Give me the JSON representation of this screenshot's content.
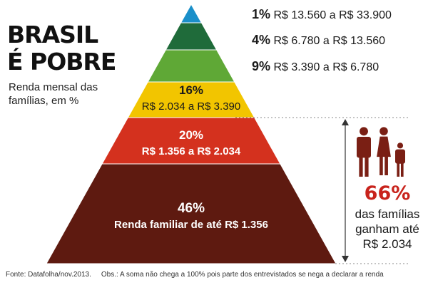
{
  "title_lines": [
    "BRASIL",
    "É POBRE"
  ],
  "subtitle": "Renda mensal das famílias, em %",
  "chart_data": {
    "type": "pyramid",
    "title": "BRASIL É POBRE",
    "subtitle": "Renda mensal das famílias, em %",
    "tiers": [
      {
        "percent": 1,
        "percent_label": "1%",
        "range_label": "R$ 13.560 a R$ 33.900",
        "color": "#1a8fc9"
      },
      {
        "percent": 4,
        "percent_label": "4%",
        "range_label": "R$ 6.780 a R$ 13.560",
        "color": "#1f6b3a"
      },
      {
        "percent": 9,
        "percent_label": "9%",
        "range_label": "R$ 3.390 a R$ 6.780",
        "color": "#5fa836"
      },
      {
        "percent": 16,
        "percent_label": "16%",
        "range_label": "R$ 2.034 a R$ 3.390",
        "color": "#f2c500"
      },
      {
        "percent": 20,
        "percent_label": "20%",
        "range_label": "R$ 1.356 a R$ 2.034",
        "color": "#d4311e"
      },
      {
        "percent": 46,
        "percent_label": "46%",
        "range_label": "Renda familiar de até R$ 1.356",
        "color": "#5e1a10"
      }
    ]
  },
  "highlight": {
    "value": "66%",
    "text": "das famílias ganham até R$ 2.034",
    "color": "#c8231c",
    "family_icon_color": "#7a1f14"
  },
  "footer": {
    "source": "Fonte: Datafolha/nov.2013.",
    "note": "Obs.: A soma não chega a 100% pois parte dos entrevistados se nega a declarar a renda"
  }
}
